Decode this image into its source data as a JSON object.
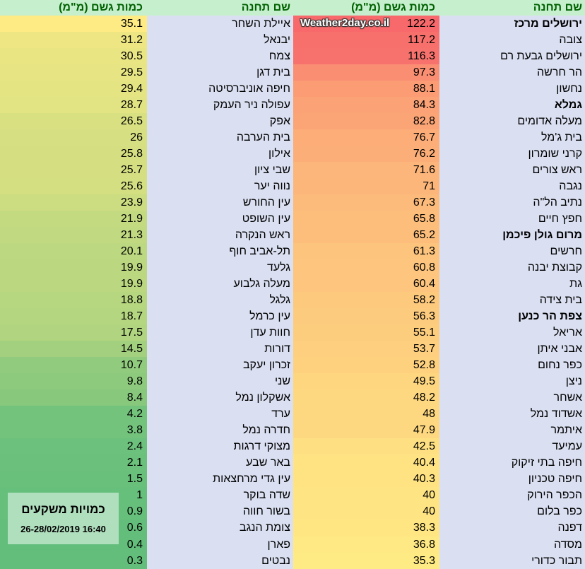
{
  "header": {
    "station_label": "שם תחנה",
    "rain_label": "כמות גשם (מ\"מ)"
  },
  "watermark": "Weather2day.co.il",
  "info_box": {
    "title": "כמויות משקעים",
    "date": "26-28/02/2019 16:40"
  },
  "colors": {
    "high": "#f8696b",
    "mid": "#ffeb84",
    "low": "#63be7b",
    "header_bg": "#c6efce",
    "header_text": "#006100",
    "name_bg": "#dae0f2"
  },
  "right_table": [
    {
      "name": "ירושלים מרכז",
      "value": "122.2",
      "bold": true
    },
    {
      "name": "צובה",
      "value": "117.2"
    },
    {
      "name": "ירושלים גבעת רם",
      "value": "116.3"
    },
    {
      "name": "הר חרשה",
      "value": "97.3"
    },
    {
      "name": "נחשון",
      "value": "88.1"
    },
    {
      "name": "גמלא",
      "value": "84.3",
      "bold": true
    },
    {
      "name": "מעלה אדומים",
      "value": "82.8"
    },
    {
      "name": "בית ג'מל",
      "value": "76.7"
    },
    {
      "name": "קרני שומרון",
      "value": "76.2"
    },
    {
      "name": "ראש צורים",
      "value": "71.6"
    },
    {
      "name": "נגבה",
      "value": "71"
    },
    {
      "name": "נתיב הל\"ה",
      "value": "67.3"
    },
    {
      "name": "חפץ חיים",
      "value": "65.8"
    },
    {
      "name": "מרום גולן פיכמן",
      "value": "65.2",
      "bold": true
    },
    {
      "name": "חרשים",
      "value": "61.3"
    },
    {
      "name": "קבוצת יבנה",
      "value": "60.8"
    },
    {
      "name": "גת",
      "value": "60.4"
    },
    {
      "name": "בית צידה",
      "value": "58.2"
    },
    {
      "name": "צפת הר כנען",
      "value": "56.3",
      "bold": true
    },
    {
      "name": "אריאל",
      "value": "55.1"
    },
    {
      "name": "אבני איתן",
      "value": "53.7"
    },
    {
      "name": "כפר נחום",
      "value": "52.8"
    },
    {
      "name": "ניצן",
      "value": "49.5"
    },
    {
      "name": "אשחר",
      "value": "48.2"
    },
    {
      "name": "אשדוד נמל",
      "value": "48"
    },
    {
      "name": "איתמר",
      "value": "47.9"
    },
    {
      "name": "עמיעד",
      "value": "42.5"
    },
    {
      "name": "חיפה בתי זיקוק",
      "value": "40.4"
    },
    {
      "name": "חיפה טכניון",
      "value": "40.3"
    },
    {
      "name": "הכפר הירוק",
      "value": "40"
    },
    {
      "name": "כפר בלום",
      "value": "40"
    },
    {
      "name": "דפנה",
      "value": "38.3"
    },
    {
      "name": "מסדה",
      "value": "36.8"
    },
    {
      "name": "תבור כדורי",
      "value": "35.3"
    }
  ],
  "left_table": [
    {
      "name": "איילת השחר",
      "value": "35.1"
    },
    {
      "name": "יבנאל",
      "value": "31.2"
    },
    {
      "name": "צמח",
      "value": "30.5"
    },
    {
      "name": "בית דגן",
      "value": "29.5"
    },
    {
      "name": "חיפה אוניברסיטה",
      "value": "29.4"
    },
    {
      "name": "עפולה ניר העמק",
      "value": "28.7"
    },
    {
      "name": "אפק",
      "value": "26.5"
    },
    {
      "name": "בית הערבה",
      "value": "26"
    },
    {
      "name": "אילון",
      "value": "25.8"
    },
    {
      "name": "שבי ציון",
      "value": "25.7"
    },
    {
      "name": "נווה יער",
      "value": "25.6"
    },
    {
      "name": "עין החורש",
      "value": "23.9"
    },
    {
      "name": "עין השופט",
      "value": "21.9"
    },
    {
      "name": "ראש הנקרה",
      "value": "21.3"
    },
    {
      "name": "תל-אביב חוף",
      "value": "20.1"
    },
    {
      "name": "גלעד",
      "value": "19.9"
    },
    {
      "name": "מעלה גלבוע",
      "value": "19.9"
    },
    {
      "name": "גלגל",
      "value": "18.8"
    },
    {
      "name": "עין כרמל",
      "value": "18.7"
    },
    {
      "name": "חוות עדן",
      "value": "17.5"
    },
    {
      "name": "דורות",
      "value": "14.5"
    },
    {
      "name": "זכרון יעקב",
      "value": "10.7"
    },
    {
      "name": "שני",
      "value": "9.8"
    },
    {
      "name": "אשקלון נמל",
      "value": "8.4"
    },
    {
      "name": "ערד",
      "value": "4.2"
    },
    {
      "name": "חדרה נמל",
      "value": "3.8"
    },
    {
      "name": "מצוקי דרגות",
      "value": "2.4"
    },
    {
      "name": "באר שבע",
      "value": "2.1"
    },
    {
      "name": "עין גדי מרחצאות",
      "value": "1.5"
    },
    {
      "name": "שדה בוקר",
      "value": "1"
    },
    {
      "name": "בשור חווה",
      "value": "0.9"
    },
    {
      "name": "צומת הנגב",
      "value": "0.6"
    },
    {
      "name": "פארן",
      "value": "0.4"
    },
    {
      "name": "נבטים",
      "value": "0.3"
    }
  ]
}
